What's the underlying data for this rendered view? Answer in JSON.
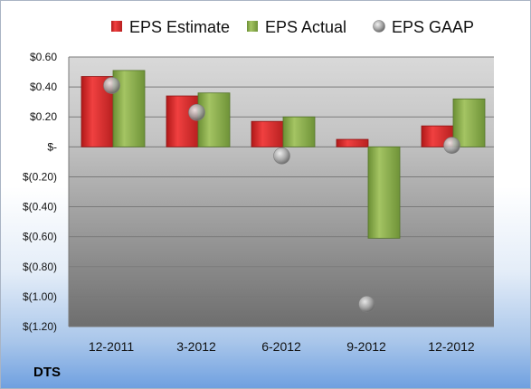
{
  "ticker": "DTS",
  "chart_data": {
    "type": "bar",
    "title": "",
    "xlabel": "",
    "ylabel": "",
    "categories": [
      "12-2011",
      "3-2012",
      "6-2012",
      "9-2012",
      "12-2012"
    ],
    "series": [
      {
        "name": "EPS Estimate",
        "type": "bar",
        "color": "#d42b2b",
        "values": [
          0.47,
          0.34,
          0.17,
          0.05,
          0.14
        ]
      },
      {
        "name": "EPS Actual",
        "type": "bar",
        "color": "#8aae4a",
        "values": [
          0.51,
          0.36,
          0.2,
          -0.61,
          0.32
        ]
      },
      {
        "name": "EPS GAAP",
        "type": "scatter",
        "color": "#a8a8a8",
        "values": [
          0.41,
          0.23,
          -0.06,
          -1.05,
          0.01
        ]
      }
    ],
    "ylim": [
      -1.2,
      0.6
    ],
    "yticks": [
      0.6,
      0.4,
      0.2,
      0,
      -0.2,
      -0.4,
      -0.6,
      -0.8,
      -1.0,
      -1.2
    ],
    "ytick_labels": [
      "$0.60",
      "$0.40",
      "$0.20",
      "$-",
      "$(0.20)",
      "$(0.40)",
      "$(0.60)",
      "$(0.80)",
      "$(1.00)",
      "$(1.20)"
    ],
    "grid": true,
    "legend": "top"
  }
}
